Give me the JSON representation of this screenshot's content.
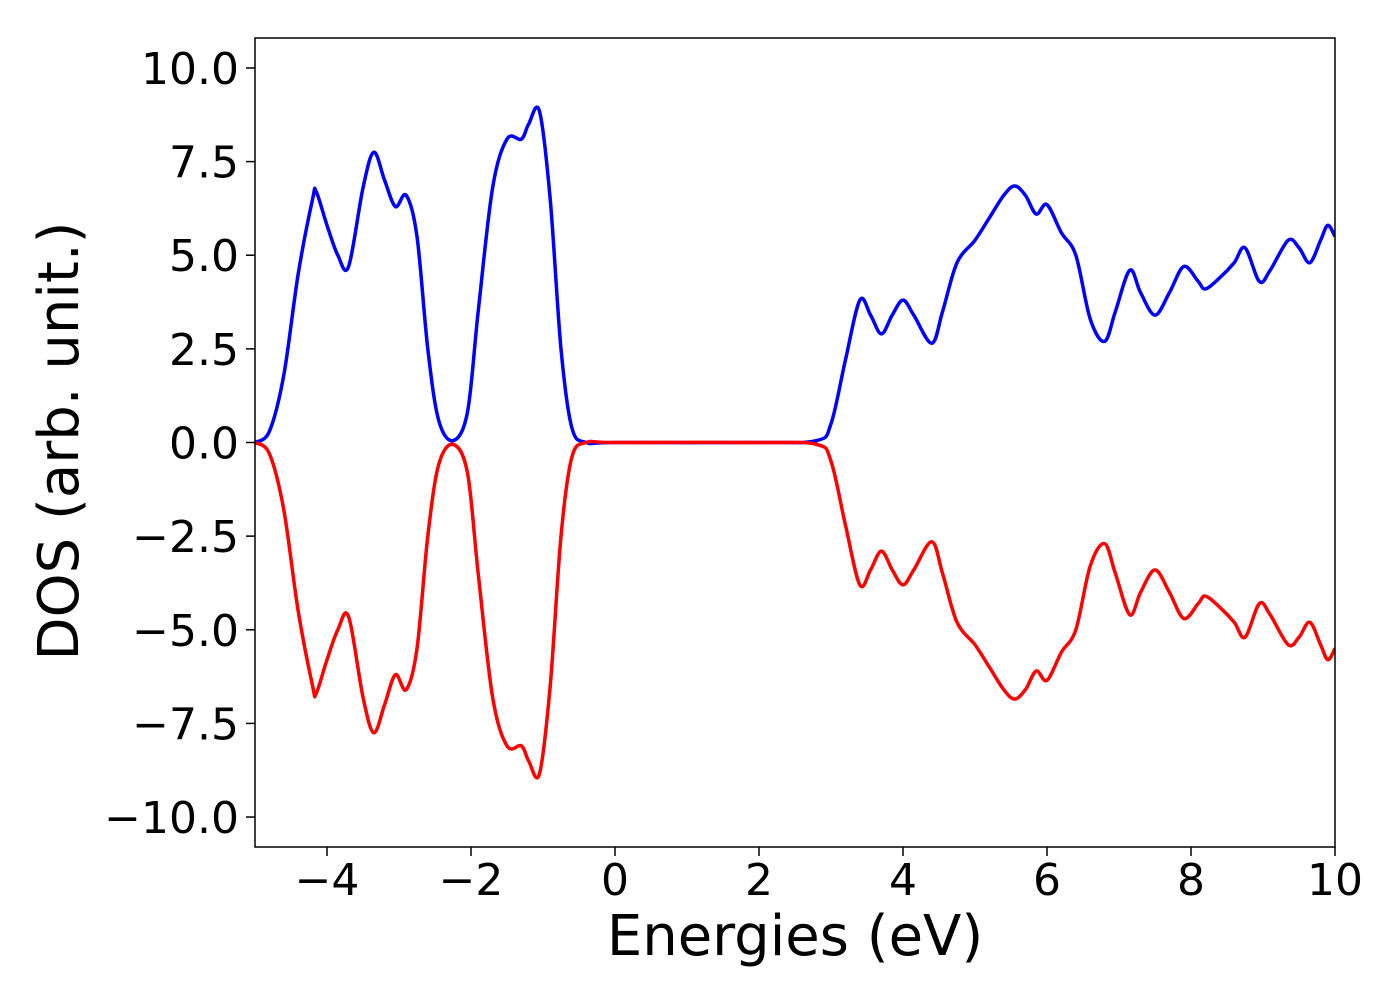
{
  "chart_data": {
    "type": "line",
    "xlabel": "Energies (eV)",
    "ylabel": "DOS (arb. unit.)",
    "x": [
      -5.0,
      -4.8,
      -4.6,
      -4.4,
      -4.2,
      -4.15,
      -4.0,
      -3.85,
      -3.7,
      -3.5,
      -3.35,
      -3.2,
      -3.05,
      -2.9,
      -2.75,
      -2.6,
      -2.45,
      -2.25,
      -2.05,
      -1.9,
      -1.7,
      -1.5,
      -1.3,
      -1.2,
      -1.05,
      -0.9,
      -0.75,
      -0.6,
      -0.4,
      0,
      2,
      2.8,
      3.0,
      3.2,
      3.4,
      3.55,
      3.7,
      3.85,
      4.0,
      4.15,
      4.4,
      4.55,
      4.75,
      5.0,
      5.2,
      5.4,
      5.55,
      5.7,
      5.85,
      6.0,
      6.2,
      6.4,
      6.6,
      6.8,
      6.95,
      7.15,
      7.3,
      7.5,
      7.7,
      7.9,
      8.1,
      8.2,
      8.4,
      8.6,
      8.75,
      8.95,
      9.1,
      9.35,
      9.5,
      9.65,
      9.8,
      9.9,
      10.0
    ],
    "series": [
      {
        "color": "#0000ff",
        "values": [
          0,
          0.3,
          1.8,
          4.5,
          6.5,
          6.7,
          5.8,
          5.0,
          4.7,
          6.8,
          7.75,
          7.0,
          6.3,
          6.6,
          5.5,
          2.5,
          0.6,
          0.05,
          0.8,
          3.5,
          6.8,
          8.1,
          8.1,
          8.5,
          8.85,
          6.5,
          2.5,
          0.4,
          0.0,
          0,
          0,
          0.05,
          0.5,
          2.2,
          3.8,
          3.4,
          2.9,
          3.4,
          3.8,
          3.4,
          2.65,
          3.5,
          4.8,
          5.4,
          6.0,
          6.6,
          6.85,
          6.6,
          6.1,
          6.35,
          5.6,
          5.0,
          3.3,
          2.7,
          3.5,
          4.6,
          4.0,
          3.4,
          4.0,
          4.7,
          4.3,
          4.1,
          4.4,
          4.8,
          5.2,
          4.3,
          4.6,
          5.4,
          5.2,
          4.8,
          5.4,
          5.8,
          5.5
        ]
      },
      {
        "color": "#ff0000",
        "values": [
          0,
          -0.3,
          -1.8,
          -4.5,
          -6.5,
          -6.7,
          -5.8,
          -5.0,
          -4.65,
          -6.8,
          -7.75,
          -7.0,
          -6.2,
          -6.6,
          -5.5,
          -2.5,
          -0.6,
          -0.05,
          -0.8,
          -3.5,
          -6.8,
          -8.1,
          -8.1,
          -8.5,
          -8.85,
          -6.5,
          -2.5,
          -0.4,
          0.0,
          0,
          0,
          -0.05,
          -0.5,
          -2.2,
          -3.8,
          -3.4,
          -2.9,
          -3.4,
          -3.8,
          -3.4,
          -2.65,
          -3.5,
          -4.8,
          -5.4,
          -6.0,
          -6.6,
          -6.85,
          -6.6,
          -6.1,
          -6.35,
          -5.6,
          -5.0,
          -3.3,
          -2.7,
          -3.5,
          -4.6,
          -4.0,
          -3.4,
          -4.0,
          -4.7,
          -4.3,
          -4.1,
          -4.4,
          -4.8,
          -5.2,
          -4.3,
          -4.6,
          -5.4,
          -5.2,
          -4.8,
          -5.4,
          -5.8,
          -5.5
        ]
      }
    ],
    "xlim": [
      -5,
      10
    ],
    "ylim": [
      -10.8,
      10.8
    ],
    "xticks": [
      {
        "value": -4,
        "label": "−4"
      },
      {
        "value": -2,
        "label": "−2"
      },
      0,
      2,
      4,
      6,
      8,
      10
    ],
    "yticks": [
      {
        "value": -10,
        "label": "−10.0"
      },
      {
        "value": -7.5,
        "label": "−7.5"
      },
      {
        "value": -5,
        "label": "−5.0"
      },
      {
        "value": -2.5,
        "label": "−2.5"
      },
      {
        "value": 0,
        "label": "0.0"
      },
      {
        "value": 2.5,
        "label": "2.5"
      },
      {
        "value": 5,
        "label": "5.0"
      },
      {
        "value": 7.5,
        "label": "7.5"
      },
      {
        "value": 10,
        "label": "10.0"
      }
    ]
  }
}
